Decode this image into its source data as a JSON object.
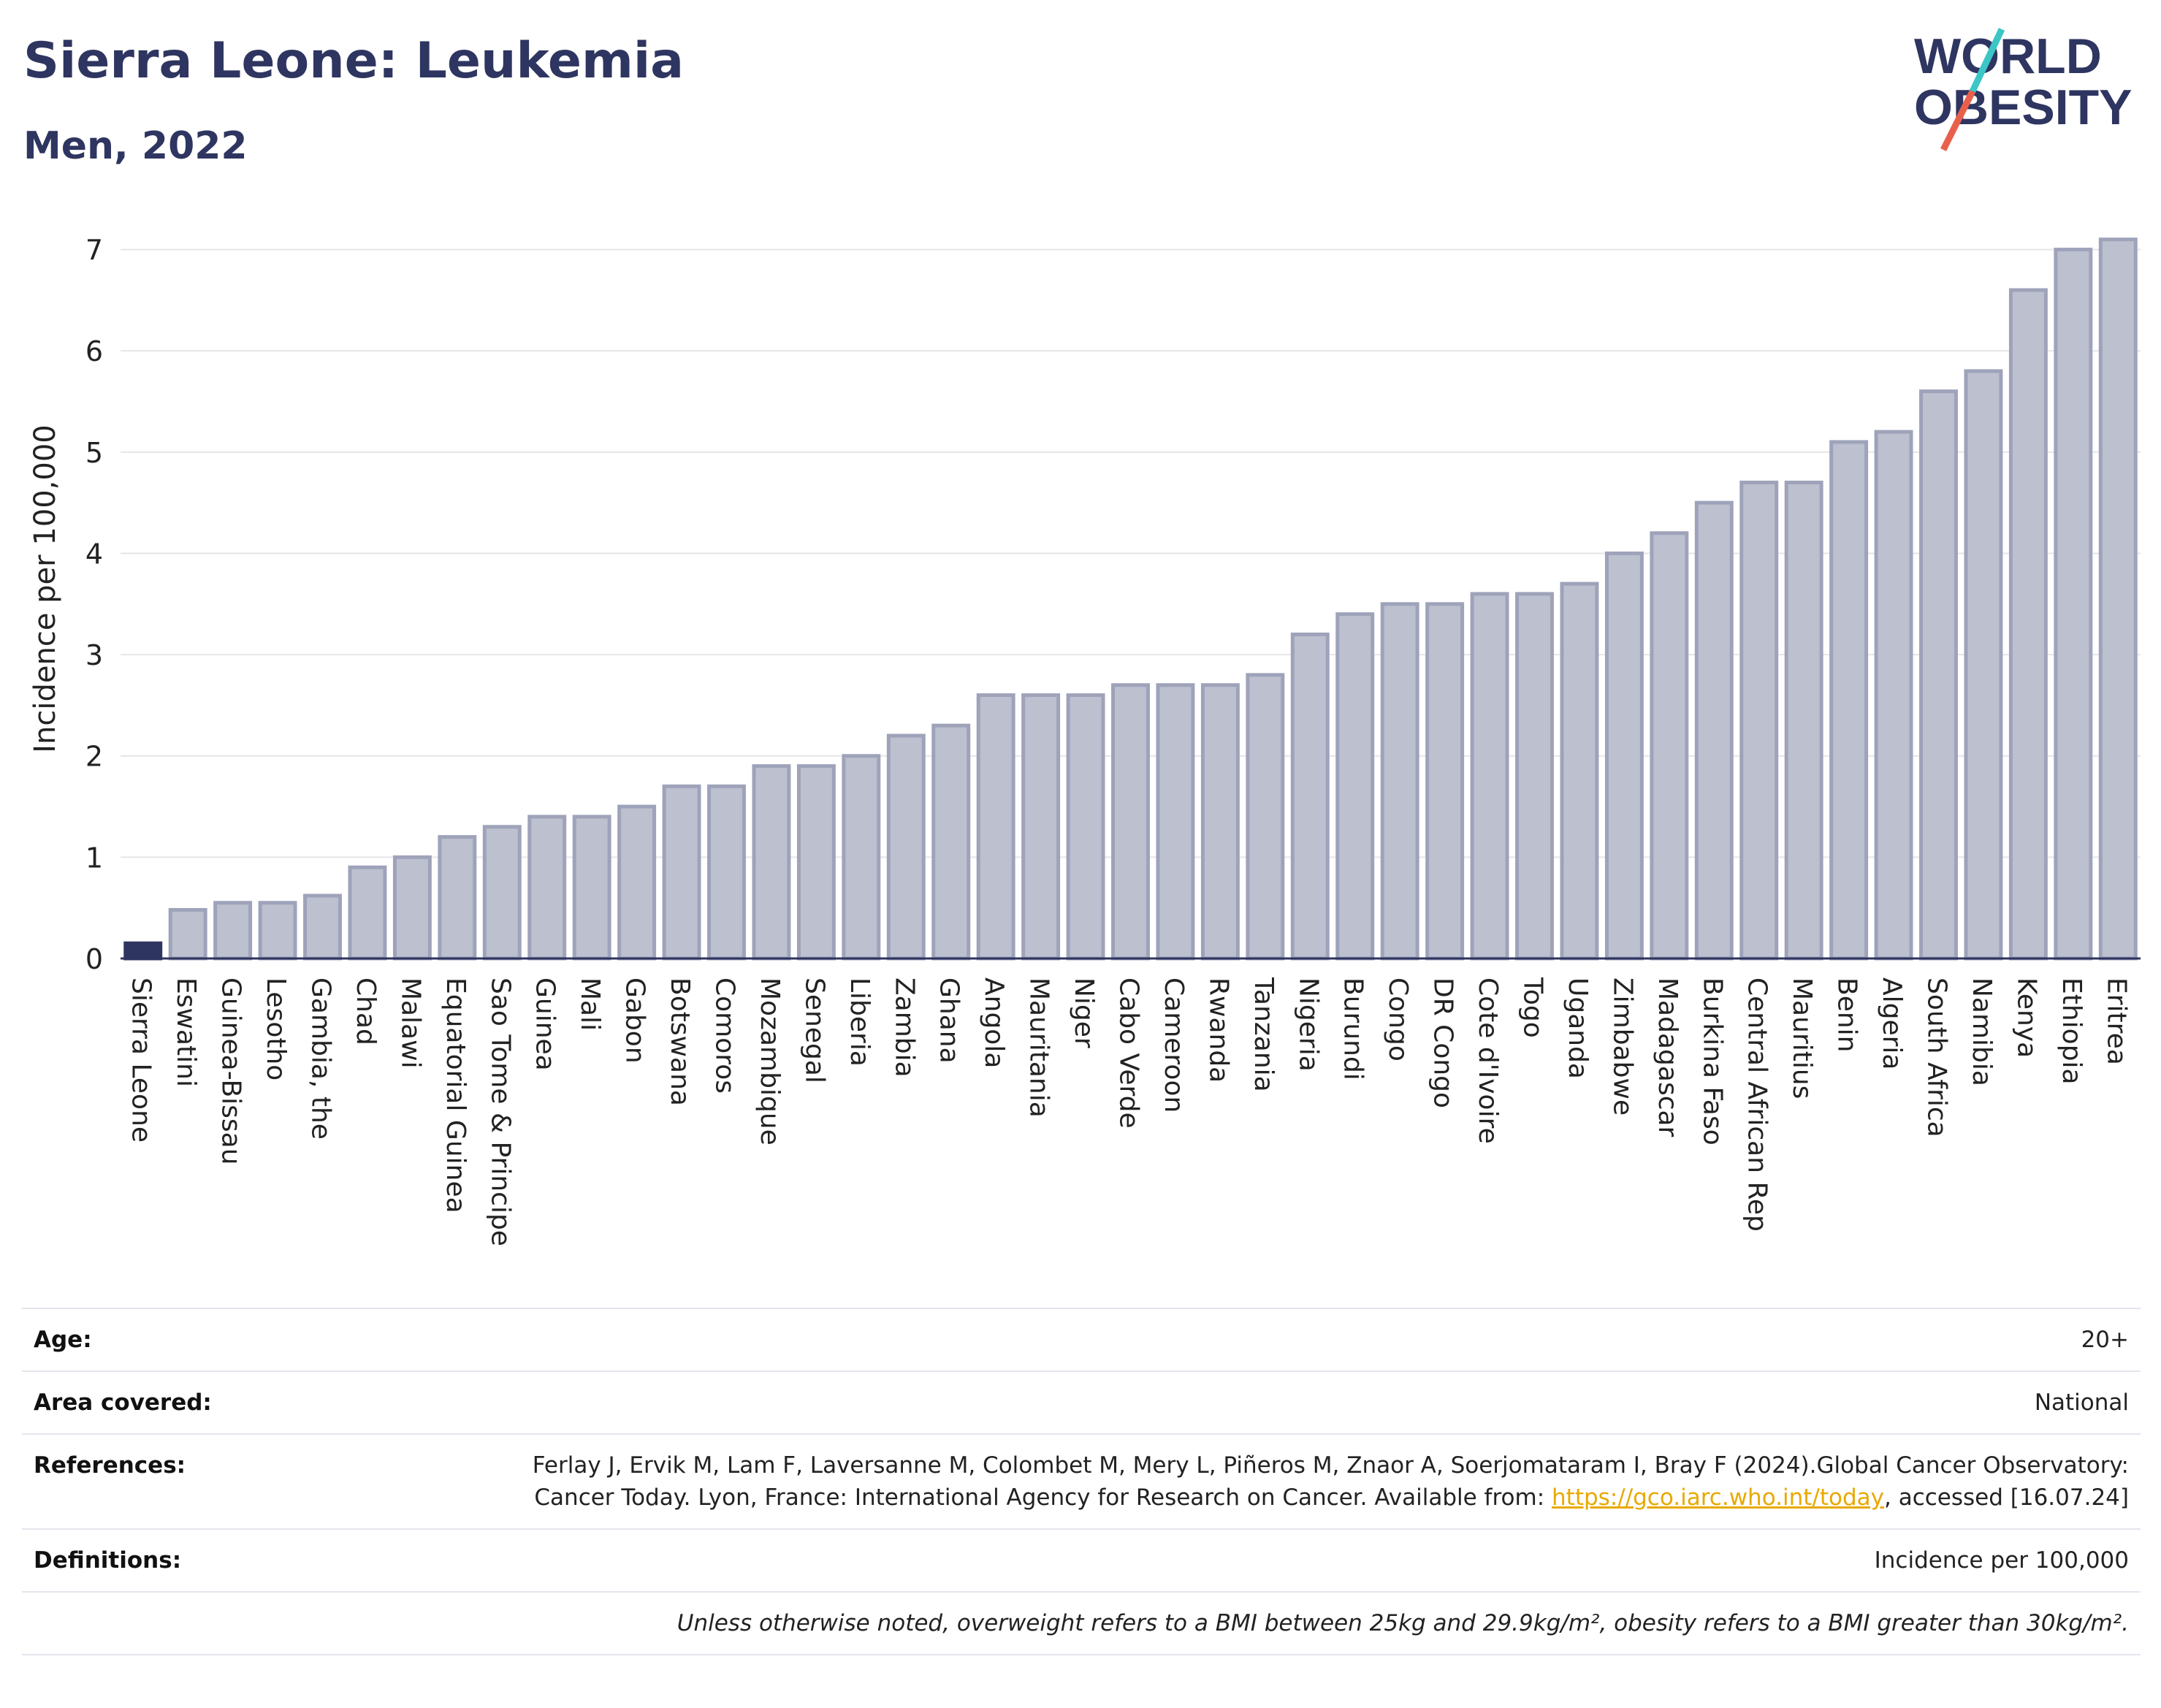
{
  "header": {
    "title": "Sierra Leone: Leukemia",
    "subtitle": "Men, 2022"
  },
  "logo": {
    "line1": "WORLD",
    "line2": "OBESITY",
    "accent_colors": [
      "#3cc6c6",
      "#e8604c"
    ]
  },
  "colors": {
    "highlight": "#2e3560",
    "bar": "#bcc0cf",
    "bar_stroke": "#9ea3ba",
    "grid": "#e6e6ea"
  },
  "chart_data": {
    "type": "bar",
    "ylabel": "Incidence per 100,000",
    "xlabel": "",
    "ylim": [
      0,
      7.3
    ],
    "yticks": [
      0,
      1,
      2,
      3,
      4,
      5,
      6,
      7
    ],
    "grid": true,
    "highlight_category": "Sierra Leone",
    "categories": [
      "Sierra Leone",
      "Eswatini",
      "Guinea-Bissau",
      "Lesotho",
      "Gambia, the",
      "Chad",
      "Malawi",
      "Equatorial Guinea",
      "Sao Tome & Principe",
      "Guinea",
      "Mali",
      "Gabon",
      "Botswana",
      "Comoros",
      "Mozambique",
      "Senegal",
      "Liberia",
      "Zambia",
      "Ghana",
      "Angola",
      "Mauritania",
      "Niger",
      "Cabo Verde",
      "Cameroon",
      "Rwanda",
      "Tanzania",
      "Nigeria",
      "Burundi",
      "Congo",
      "DR Congo",
      "Cote d'Ivoire",
      "Togo",
      "Uganda",
      "Zimbabwe",
      "Madagascar",
      "Burkina Faso",
      "Central African Rep",
      "Mauritius",
      "Benin",
      "Algeria",
      "South Africa",
      "Namibia",
      "Kenya",
      "Ethiopia",
      "Eritrea"
    ],
    "values": [
      0.15,
      0.48,
      0.55,
      0.55,
      0.62,
      0.9,
      1.0,
      1.2,
      1.3,
      1.4,
      1.4,
      1.5,
      1.7,
      1.7,
      1.9,
      1.9,
      2.0,
      2.2,
      2.3,
      2.6,
      2.6,
      2.6,
      2.7,
      2.7,
      2.7,
      2.8,
      3.2,
      3.4,
      3.5,
      3.5,
      3.6,
      3.6,
      3.7,
      4.0,
      4.2,
      4.5,
      4.7,
      4.7,
      5.1,
      5.2,
      5.6,
      5.8,
      6.6,
      7.0,
      7.1
    ]
  },
  "meta": {
    "age_label": "Age:",
    "age_value": "20+",
    "area_label": "Area covered:",
    "area_value": "National",
    "references_label": "References:",
    "references_text": "Ferlay J, Ervik M, Lam F, Laversanne M, Colombet M, Mery L, Piñeros M, Znaor A, Soerjomataram I, Bray F (2024).Global Cancer Observatory: Cancer Today. Lyon, France: International Agency for Research on Cancer. Available from:",
    "references_link": "https://gco.iarc.who.int/today",
    "references_suffix": ", accessed [16.07.24]",
    "definitions_label": "Definitions:",
    "definitions_value": "Incidence per 100,000",
    "note": "Unless otherwise noted, overweight refers to a BMI between 25kg and 29.9kg/m², obesity refers to a BMI greater than 30kg/m²."
  }
}
